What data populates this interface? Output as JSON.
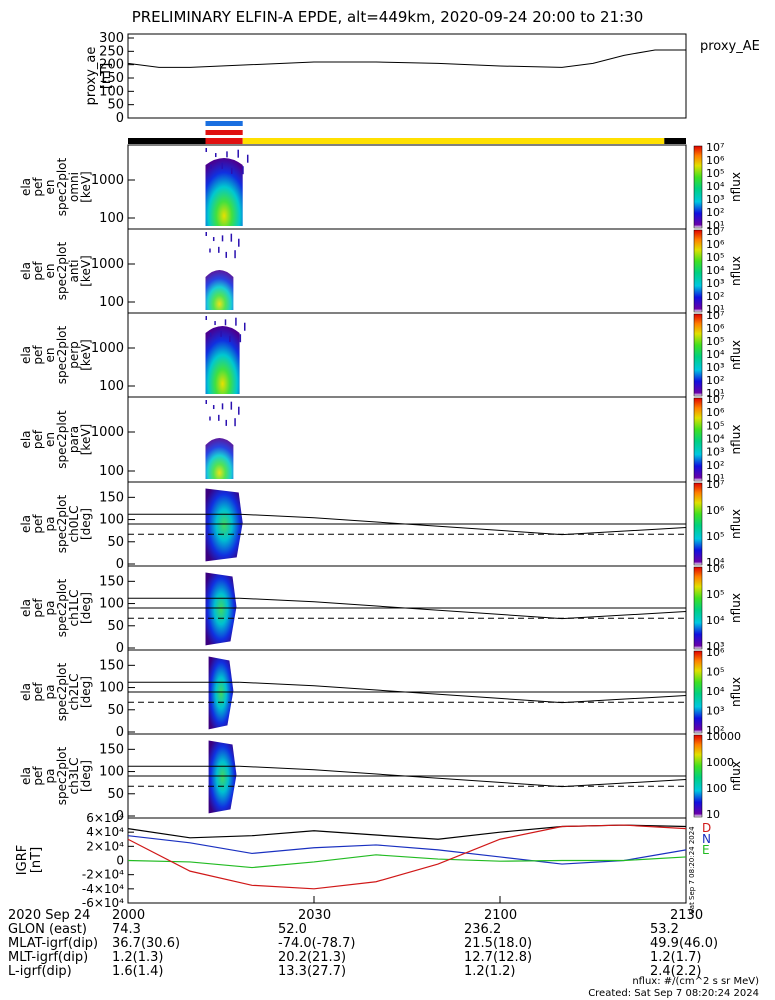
{
  "title": "PRELIMINARY ELFIN-A EPDE, alt=449km, 2020-09-24 20:00 to 21:30",
  "colors": {
    "state_black": "#000000",
    "state_yellow": "#ffe000",
    "bar_blue": "#1a6fe0",
    "bar_red": "#e01010",
    "curve_red": "#d01818",
    "curve_green": "#22bb22",
    "curve_blue": "#1a30c0"
  },
  "time_axis": {
    "range_minutes": [
      0,
      90
    ],
    "ticks": [
      "2000",
      "2030",
      "2100",
      "2130"
    ],
    "tick_minutes": [
      0,
      30,
      60,
      90
    ]
  },
  "footer": {
    "date_label": "2020 Sep 24",
    "rows": [
      {
        "label": "GLON (east)",
        "values": [
          "74.3",
          "52.0",
          "236.2",
          "53.2"
        ]
      },
      {
        "label": "MLAT-igrf(dip)",
        "values": [
          "36.7(30.6)",
          "-74.0(-78.7)",
          "21.5(18.0)",
          "49.9(46.0)"
        ]
      },
      {
        "label": "MLT-igrf(dip)",
        "values": [
          "1.2(1.3)",
          "20.2(21.3)",
          "12.7(12.8)",
          "1.2(1.7)"
        ]
      },
      {
        "label": "L-igrf(dip)",
        "values": [
          "1.6(1.4)",
          "13.3(27.7)",
          "1.2(1.2)",
          "2.4(2.2)"
        ]
      }
    ],
    "units_note": "nflux: #/(cm^2 s sr MeV)",
    "created": "Created: Sat Sep  7 08:20:24 2024",
    "side_stamp": "Sat Sep  7 08:20:24 2024"
  },
  "chart_data": [
    {
      "type": "line",
      "ylabel": [
        "proxy_ae",
        "[nT]"
      ],
      "legend": "proxy_AE",
      "ylim": [
        0,
        300
      ],
      "yticks": [
        "0",
        "50",
        "100",
        "150",
        "200",
        "250",
        "300"
      ],
      "x": [
        0,
        5,
        10,
        20,
        30,
        40,
        50,
        60,
        70,
        75,
        80,
        85,
        90
      ],
      "values": [
        205,
        190,
        190,
        200,
        210,
        210,
        205,
        195,
        190,
        205,
        235,
        255,
        255
      ]
    },
    {
      "type": "state_bars",
      "series": [
        {
          "name": "blue",
          "segments": [
            [
              12.5,
              18.5
            ]
          ]
        },
        {
          "name": "red",
          "segments": [
            [
              12.5,
              18.5
            ]
          ]
        },
        {
          "name": "state",
          "segments": [
            {
              "from": 0,
              "to": 12.5,
              "color": "black"
            },
            {
              "from": 12.5,
              "to": 18.5,
              "color": "red"
            },
            {
              "from": 18.5,
              "to": 86.5,
              "color": "yellow"
            },
            {
              "from": 86.5,
              "to": 90,
              "color": "black"
            }
          ]
        }
      ]
    },
    {
      "type": "heatmap",
      "ylabel": [
        "ela",
        "pef",
        "en",
        "spec2plot",
        "omni",
        "[keV]"
      ],
      "yticks": [
        "100",
        "1000"
      ],
      "colorbar": {
        "label": "nflux",
        "ticks": [
          "10¹",
          "10²",
          "10³",
          "10⁴",
          "10⁵",
          "10⁶",
          "10⁷"
        ]
      },
      "x_range": [
        12.5,
        18.5
      ],
      "shape": "energy"
    },
    {
      "type": "heatmap",
      "ylabel": [
        "ela",
        "pef",
        "en",
        "spec2plot",
        "anti",
        "[keV]"
      ],
      "yticks": [
        "100",
        "1000"
      ],
      "colorbar": {
        "label": "nflux",
        "ticks": [
          "10¹",
          "10²",
          "10³",
          "10⁴",
          "10⁵",
          "10⁶",
          "10⁷"
        ]
      },
      "x_range": [
        12.5,
        17
      ],
      "shape": "energy_small"
    },
    {
      "type": "heatmap",
      "ylabel": [
        "ela",
        "pef",
        "en",
        "spec2plot",
        "perp",
        "[keV]"
      ],
      "yticks": [
        "100",
        "1000"
      ],
      "colorbar": {
        "label": "nflux",
        "ticks": [
          "10¹",
          "10²",
          "10³",
          "10⁴",
          "10⁵",
          "10⁶",
          "10⁷"
        ]
      },
      "x_range": [
        12.5,
        18
      ],
      "shape": "energy"
    },
    {
      "type": "heatmap",
      "ylabel": [
        "ela",
        "pef",
        "en",
        "spec2plot",
        "para",
        "[keV]"
      ],
      "yticks": [
        "100",
        "1000"
      ],
      "colorbar": {
        "label": "nflux",
        "ticks": [
          "10¹",
          "10²",
          "10³",
          "10⁴",
          "10⁵",
          "10⁶",
          "10⁷"
        ]
      },
      "x_range": [
        12.5,
        17
      ],
      "shape": "energy_small"
    },
    {
      "type": "heatmap",
      "ylabel": [
        "ela",
        "pef",
        "pa",
        "spec2plot",
        "ch0LC",
        "[deg]"
      ],
      "yticks": [
        "0",
        "50",
        "100",
        "150"
      ],
      "colorbar": {
        "label": "nflux",
        "ticks": [
          "10⁴",
          "10⁵",
          "10⁶",
          "10⁷"
        ]
      },
      "x_range": [
        12.5,
        18.5
      ],
      "shape": "pa",
      "lc_line": {
        "x": [
          18,
          30,
          70,
          90
        ],
        "y": [
          112,
          104,
          66,
          82
        ]
      }
    },
    {
      "type": "heatmap",
      "ylabel": [
        "ela",
        "pef",
        "pa",
        "spec2plot",
        "ch1LC",
        "[deg]"
      ],
      "yticks": [
        "0",
        "50",
        "100",
        "150"
      ],
      "colorbar": {
        "label": "nflux",
        "ticks": [
          "10³",
          "10⁴",
          "10⁵",
          "10⁶"
        ]
      },
      "x_range": [
        12.5,
        17.5
      ],
      "shape": "pa",
      "lc_line": {
        "x": [
          18,
          30,
          70,
          90
        ],
        "y": [
          112,
          104,
          66,
          82
        ]
      }
    },
    {
      "type": "heatmap",
      "ylabel": [
        "ela",
        "pef",
        "pa",
        "spec2plot",
        "ch2LC",
        "[deg]"
      ],
      "yticks": [
        "0",
        "50",
        "100",
        "150"
      ],
      "colorbar": {
        "label": "nflux",
        "ticks": [
          "10²",
          "10³",
          "10⁴",
          "10⁵",
          "10⁶"
        ]
      },
      "x_range": [
        13,
        17
      ],
      "shape": "pa",
      "lc_line": {
        "x": [
          18,
          30,
          70,
          90
        ],
        "y": [
          112,
          104,
          66,
          82
        ]
      }
    },
    {
      "type": "heatmap",
      "ylabel": [
        "ela",
        "pef",
        "pa",
        "spec2plot",
        "ch3LC",
        "[deg]"
      ],
      "yticks": [
        "0",
        "50",
        "100",
        "150"
      ],
      "colorbar": {
        "label": "nflux",
        "ticks": [
          "10",
          "100",
          "1000",
          "10000"
        ]
      },
      "x_range": [
        13,
        17.5
      ],
      "shape": "pa",
      "lc_line": {
        "x": [
          18,
          30,
          70,
          90
        ],
        "y": [
          112,
          104,
          66,
          82
        ]
      }
    },
    {
      "type": "line",
      "ylabel": [
        "IGRF",
        "[nT]"
      ],
      "ylim": [
        -60000,
        60000
      ],
      "yticks": [
        "-6×10⁴",
        "-4×10⁴",
        "-2×10⁴",
        "0",
        "2×10⁴",
        "4×10⁴",
        "6×10⁴"
      ],
      "legend": [
        "D",
        "N",
        "E"
      ],
      "x": [
        0,
        10,
        20,
        30,
        40,
        50,
        60,
        70,
        80,
        90
      ],
      "series": [
        {
          "name": "black",
          "values": [
            45000,
            32000,
            35000,
            42000,
            36000,
            30000,
            40000,
            48000,
            50000,
            48000
          ]
        },
        {
          "name": "blue",
          "values": [
            35000,
            25000,
            10000,
            18000,
            22000,
            15000,
            5000,
            -5000,
            0,
            15000
          ]
        },
        {
          "name": "green",
          "values": [
            0,
            -2000,
            -10000,
            -2000,
            8000,
            2000,
            -1000,
            0,
            0,
            5000
          ]
        },
        {
          "name": "red",
          "values": [
            30000,
            -15000,
            -35000,
            -40000,
            -30000,
            -5000,
            30000,
            48000,
            50000,
            45000
          ]
        }
      ]
    }
  ]
}
